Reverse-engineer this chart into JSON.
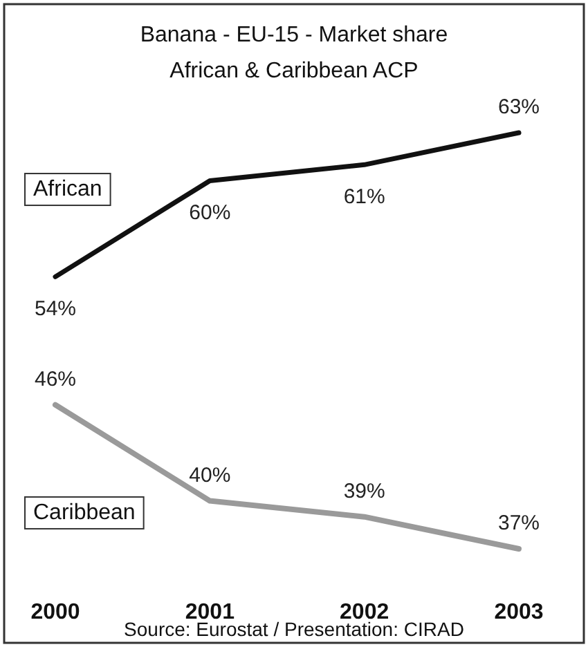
{
  "chart_data": {
    "type": "line",
    "title": "Banana - EU-15 - Market share",
    "subtitle": "African & Caribbean ACP",
    "categories": [
      "2000",
      "2001",
      "2002",
      "2003"
    ],
    "series": [
      {
        "name": "African",
        "color": "#111111",
        "values": [
          54,
          60,
          61,
          63
        ],
        "value_labels": [
          "54%",
          "60%",
          "61%",
          "63%"
        ]
      },
      {
        "name": "Caribbean",
        "color": "#9a9a9a",
        "values": [
          46,
          40,
          39,
          37
        ],
        "value_labels": [
          "46%",
          "40%",
          "39%",
          "37%"
        ]
      }
    ],
    "annotations": [
      "Source: Eurostat / Presentation: CIRAD"
    ]
  }
}
